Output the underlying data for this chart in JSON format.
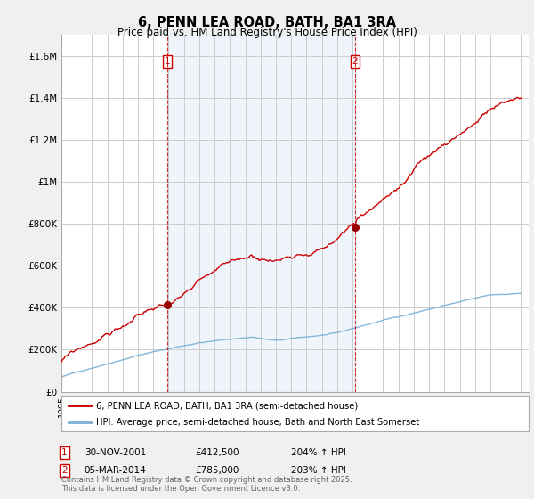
{
  "title": "6, PENN LEA ROAD, BATH, BA1 3RA",
  "subtitle": "Price paid vs. HM Land Registry's House Price Index (HPI)",
  "background_color": "#f0f0f0",
  "plot_bg_color": "#ffffff",
  "shaded_bg_color": "#ddeeff",
  "ylabel_ticks": [
    "£0",
    "£200K",
    "£400K",
    "£600K",
    "£800K",
    "£1M",
    "£1.2M",
    "£1.4M",
    "£1.6M"
  ],
  "ytick_values": [
    0,
    200000,
    400000,
    600000,
    800000,
    1000000,
    1200000,
    1400000,
    1600000
  ],
  "ylim": [
    0,
    1700000
  ],
  "xlim_start": 1995,
  "xlim_end": 2025.5,
  "legend_label_red": "6, PENN LEA ROAD, BATH, BA1 3RA (semi-detached house)",
  "legend_label_blue": "HPI: Average price, semi-detached house, Bath and North East Somerset",
  "marker1_date": 2001.92,
  "marker1_price": 412500,
  "marker2_date": 2014.17,
  "marker2_price": 785000,
  "footer": "Contains HM Land Registry data © Crown copyright and database right 2025.\nThis data is licensed under the Open Government Licence v3.0.",
  "red_line_color": "#cc0000",
  "blue_line_color": "#7aafd4",
  "marker_color": "#990000",
  "vline_color": "#cc0000",
  "grid_color": "#cccccc"
}
